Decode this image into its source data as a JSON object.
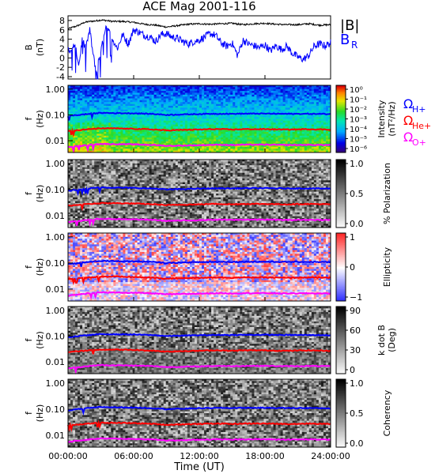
{
  "chart_data": {
    "title": "ACE Mag 2001-116",
    "type": "line",
    "xlabel": "Time (UT)",
    "x_ticks": [
      "00:00:00",
      "06:00:00",
      "12:00:00",
      "18:00:00",
      "24:00:00"
    ],
    "xlim_hours": [
      0,
      24
    ],
    "panels": [
      {
        "id": "field",
        "type": "line",
        "ylabel": "B",
        "yunit": "(nT)",
        "ylim": [
          -4.5,
          9
        ],
        "y_ticks": [
          "8",
          "6",
          "4",
          "2",
          "0",
          "-2",
          "-4"
        ],
        "y_tick_values": [
          8,
          6,
          4,
          2,
          0,
          -2,
          -4
        ],
        "series": [
          {
            "name": "|B|",
            "color": "#000000",
            "x": [
              0,
              0.5,
              1,
              1.5,
              2,
              2.5,
              3,
              3.5,
              4,
              5,
              6,
              7,
              8,
              9,
              10,
              11,
              12,
              13,
              14,
              15,
              16,
              17,
              18,
              19,
              20,
              21,
              22,
              23,
              24
            ],
            "y": [
              6.2,
              6.6,
              7.0,
              7.6,
              7.8,
              7.9,
              8.1,
              8.0,
              7.8,
              7.8,
              7.6,
              7.2,
              7.0,
              6.6,
              6.9,
              7.2,
              7.3,
              7.2,
              7.3,
              7.4,
              7.1,
              7.3,
              7.4,
              7.2,
              7.1,
              7.1,
              7.3,
              7.0,
              7.1
            ]
          },
          {
            "name": "B_R",
            "color": "#0000ff",
            "x": [
              0,
              0.3,
              0.6,
              1,
              1.3,
              1.6,
              2,
              2.3,
              2.6,
              3,
              3.5,
              4,
              4.5,
              5,
              5.5,
              6,
              6.5,
              7,
              7.5,
              8,
              8.5,
              9,
              9.5,
              10,
              10.5,
              11,
              11.5,
              12,
              12.5,
              13,
              13.5,
              14,
              14.5,
              15,
              15.5,
              16,
              16.5,
              17,
              17.5,
              18,
              18.5,
              19,
              19.5,
              20,
              20.5,
              21,
              21.5,
              22,
              22.5,
              23,
              23.5,
              24
            ],
            "y": [
              2.5,
              1.0,
              3.0,
              -1.5,
              4.0,
              2.0,
              6.0,
              0.5,
              -3.0,
              1.5,
              6.5,
              4.5,
              2.0,
              5.0,
              3.0,
              6.0,
              5.5,
              4.8,
              4.5,
              3.5,
              5.0,
              5.2,
              4.5,
              4.2,
              3.5,
              3.0,
              3.5,
              3.8,
              4.5,
              5.2,
              4.8,
              3.2,
              2.5,
              3.2,
              0.5,
              3.8,
              3.0,
              2.6,
              2.2,
              2.8,
              1.5,
              2.6,
              1.8,
              2.5,
              1.0,
              0.2,
              -0.3,
              0.5,
              2.5,
              3.0,
              2.6,
              3.2
            ]
          }
        ]
      },
      {
        "id": "intensity",
        "type": "heatmap",
        "ylabel": "f",
        "yunit": "(Hz)",
        "y_ticks": [
          "1.00",
          "0.10",
          "0.01"
        ],
        "colorbar": {
          "label": "Intensity",
          "unit": "(nT²/Hz)",
          "ticks": [
            "10⁰",
            "10⁻¹",
            "10⁻²",
            "10⁻³",
            "10⁻⁴",
            "10⁻⁵",
            "10⁻⁶"
          ],
          "scale": "rainbow"
        }
      },
      {
        "id": "polarization",
        "type": "heatmap",
        "ylabel": "f",
        "yunit": "(Hz)",
        "y_ticks": [
          "1.00",
          "0.10",
          "0.01"
        ],
        "colorbar": {
          "label": "% Polarization",
          "unit": "",
          "ticks": [
            "1.0",
            "0.5",
            "0.0"
          ],
          "scale": "gray"
        }
      },
      {
        "id": "ellipticity",
        "type": "heatmap",
        "ylabel": "f",
        "yunit": "(Hz)",
        "y_ticks": [
          "1.00",
          "0.10",
          "0.01"
        ],
        "colorbar": {
          "label": "Ellipticity",
          "unit": "",
          "ticks": [
            "1",
            "0",
            "−1"
          ],
          "scale": "bwr"
        }
      },
      {
        "id": "kdotb",
        "type": "heatmap",
        "ylabel": "f",
        "yunit": "(Hz)",
        "y_ticks": [
          "1.00",
          "0.10",
          "0.01"
        ],
        "colorbar": {
          "label": "k dot B",
          "unit": "(Deg)",
          "ticks": [
            "90",
            "60",
            "30",
            "0"
          ],
          "scale": "gray"
        }
      },
      {
        "id": "coherency",
        "type": "heatmap",
        "ylabel": "f",
        "yunit": "(Hz)",
        "y_ticks": [
          "1.00",
          "0.10",
          "0.01"
        ],
        "colorbar": {
          "label": "Coherency",
          "unit": "",
          "ticks": [
            "1.0",
            "0.5",
            "0.0"
          ],
          "scale": "gray"
        }
      }
    ],
    "gyrofrequency_overlays": {
      "note_legend": [
        "ΩH+",
        "ΩHe+",
        "ΩO+"
      ],
      "x": [
        0,
        1,
        2,
        3,
        4,
        6,
        8,
        9,
        10,
        12,
        13,
        14,
        15,
        16,
        18,
        20,
        22,
        24
      ],
      "series": [
        {
          "name": "ΩH+",
          "color": "#0000ff",
          "y": [
            0.09,
            0.1,
            0.11,
            0.12,
            0.118,
            0.115,
            0.108,
            0.1,
            0.103,
            0.108,
            0.11,
            0.111,
            0.11,
            0.112,
            0.112,
            0.11,
            0.11,
            0.108
          ]
        },
        {
          "name": "ΩHe+",
          "color": "#ff0000",
          "y": [
            0.024,
            0.026,
            0.028,
            0.03,
            0.03,
            0.029,
            0.027,
            0.025,
            0.026,
            0.027,
            0.028,
            0.028,
            0.027,
            0.028,
            0.028,
            0.027,
            0.028,
            0.027
          ]
        },
        {
          "name": "ΩO+",
          "color": "#ff00ff",
          "y": [
            0.0056,
            0.0062,
            0.007,
            0.0075,
            0.0074,
            0.0072,
            0.0068,
            0.0063,
            0.0064,
            0.0067,
            0.0069,
            0.007,
            0.0068,
            0.007,
            0.007,
            0.0068,
            0.0069,
            0.0068
          ]
        }
      ]
    },
    "legend": [
      {
        "text": "|B|",
        "color": "#000000"
      },
      {
        "text": "B",
        "sub": "R",
        "color": "#0000ff"
      }
    ],
    "species_legend": [
      {
        "text": "Ω",
        "sub": "H+",
        "color": "#0000ff"
      },
      {
        "text": "Ω",
        "sub": "He+",
        "color": "#ff0000"
      },
      {
        "text": "Ω",
        "sub": "O+",
        "color": "#ff00ff"
      }
    ]
  }
}
